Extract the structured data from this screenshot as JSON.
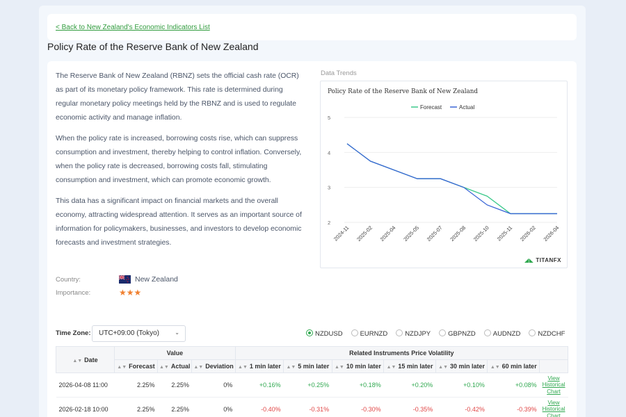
{
  "back_link": "< Back to New Zealand's Economic Indicators List",
  "page_title": "Policy Rate of the Reserve Bank of New Zealand",
  "description": [
    "The Reserve Bank of New Zealand (RBNZ) sets the official cash rate (OCR) as part of its monetary policy framework. This rate is determined during regular monetary policy meetings held by the RBNZ and is used to regulate economic activity and manage inflation.",
    "When the policy rate is increased, borrowing costs rise, which can suppress consumption and investment, thereby helping to control inflation. Conversely, when the policy rate is decreased, borrowing costs fall, stimulating consumption and investment, which can promote economic growth.",
    "This data has a significant impact on financial markets and the overall economy, attracting widespread attention. It serves as an important source of information for policymakers, businesses, and investors to develop economic forecasts and investment strategies."
  ],
  "meta": {
    "country_label": "Country:",
    "country_value": "New Zealand",
    "importance_label": "Importance:",
    "importance_stars": "★★★"
  },
  "trends_label": "Data Trends",
  "brand": "TITANFX",
  "colors": {
    "accent": "#2fa84f",
    "forecast": "#3cc98b",
    "actual": "#3a66d6",
    "negative": "#e04646"
  },
  "chart_data": {
    "type": "line",
    "title": "Policy Rate of the Reserve Bank of New Zealand",
    "categories": [
      "2024-11",
      "2025-02",
      "2025-04",
      "2025-05",
      "2025-07",
      "2025-08",
      "2025-10",
      "2025-11",
      "2026-02",
      "2026-04"
    ],
    "series": [
      {
        "name": "Forecast",
        "values": [
          4.25,
          3.75,
          3.5,
          3.25,
          3.25,
          3.0,
          2.75,
          2.25,
          2.25,
          2.25
        ]
      },
      {
        "name": "Actual",
        "values": [
          4.25,
          3.75,
          3.5,
          3.25,
          3.25,
          3.0,
          2.5,
          2.25,
          2.25,
          2.25
        ]
      }
    ],
    "y_ticks": [
      "2",
      "3",
      "4",
      "5"
    ],
    "ylim": [
      2,
      5
    ],
    "legend": "top-center",
    "grid": true
  },
  "timezone": {
    "label": "Time Zone:",
    "value": "UTC+09:00 (Tokyo)"
  },
  "instruments": [
    "NZDUSD",
    "EURNZD",
    "NZDJPY",
    "GBPNZD",
    "AUDNZD",
    "NZDCHF"
  ],
  "selected_instrument": "NZDUSD",
  "table": {
    "h_date": "Date",
    "h_value": "Value",
    "h_forecast": "Forecast",
    "h_actual": "Actual",
    "h_deviation": "Deviation",
    "h_volatility": "Related Instruments Price Volatility",
    "h_cols": [
      "1 min later",
      "5 min later",
      "10 min later",
      "15 min later",
      "30 min later",
      "60 min later"
    ],
    "link_text": "View Historical Chart",
    "rows": [
      {
        "date": "2026-04-08 11:00",
        "forecast": "2.25%",
        "actual": "2.25%",
        "deviation": "0%",
        "vol": [
          "+0.16%",
          "+0.25%",
          "+0.18%",
          "+0.20%",
          "+0.10%",
          "+0.08%"
        ]
      },
      {
        "date": "2026-02-18 10:00",
        "forecast": "2.25%",
        "actual": "2.25%",
        "deviation": "0%",
        "vol": [
          "-0.40%",
          "-0.31%",
          "-0.30%",
          "-0.35%",
          "-0.42%",
          "-0.39%"
        ]
      }
    ]
  }
}
